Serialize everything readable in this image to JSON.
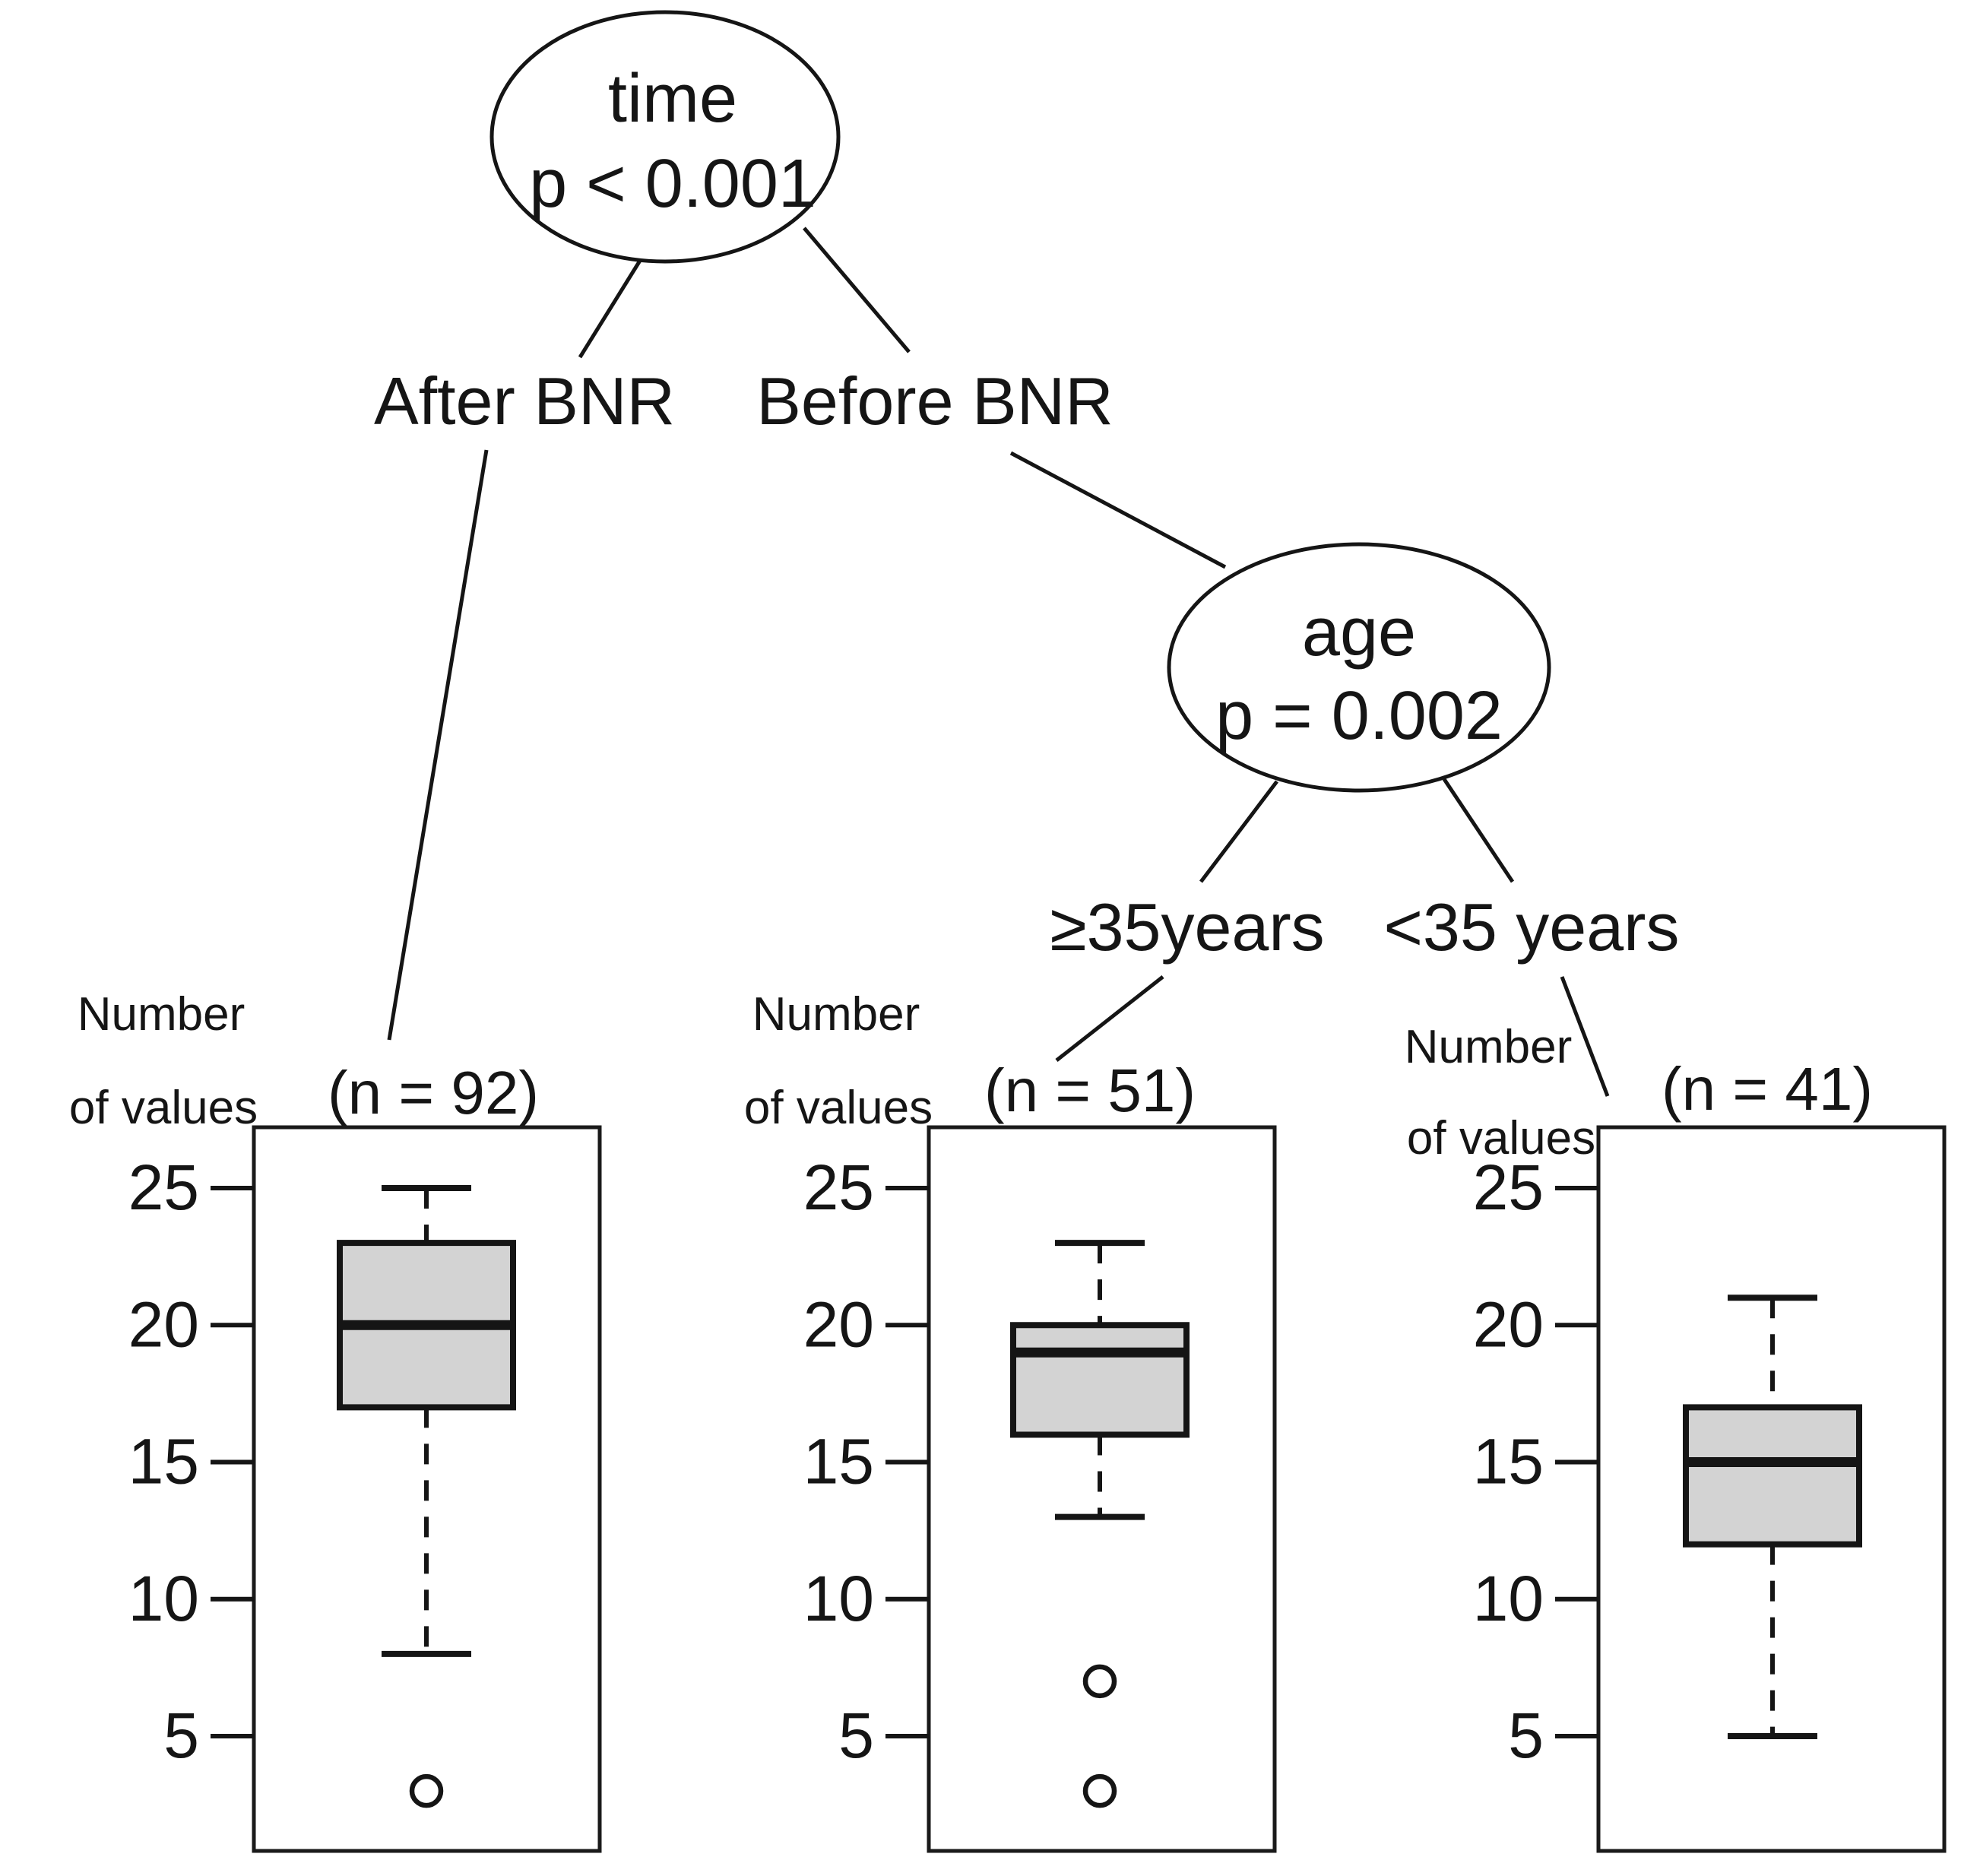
{
  "figure": {
    "background": "#ffffff",
    "ink": "#151515",
    "box_fill": "#d3d3d3"
  },
  "tree": {
    "root_node": {
      "label": "time",
      "pvalue": "p < 0.001"
    },
    "age_node": {
      "label": "age",
      "pvalue": "p = 0.002"
    },
    "branches": {
      "root_left": "After BNR",
      "root_right": "Before BNR",
      "age_left": "≥35years",
      "age_right": "<35 years"
    }
  },
  "axis": {
    "title_line1": "Number",
    "title_line2": "of values",
    "ticks": [
      25,
      20,
      15,
      10,
      5
    ]
  },
  "chart_data": {
    "type": "boxplot",
    "title": "",
    "xlabel": "",
    "ylabel": "Number of values",
    "yticks": [
      5,
      10,
      15,
      20,
      25
    ],
    "ylim": [
      1,
      27
    ],
    "grid": false,
    "legend": "none",
    "tree_structure": "time (p < 0.001): After BNR -> leaf n=92; Before BNR -> age (p = 0.002): >=35years -> leaf n=51, <35 years -> leaf n=41",
    "panels": [
      {
        "branch": "After BNR",
        "n_label": "(n = 92)",
        "n": 92,
        "whisker_high": 25,
        "q3": 23,
        "median": 20,
        "q1": 17,
        "whisker_low": 8,
        "outliers": [
          3
        ]
      },
      {
        "branch": "Before BNR, ≥35years",
        "n_label": "(n = 51)",
        "n": 51,
        "whisker_high": 23,
        "q3": 20,
        "median": 19,
        "q1": 16,
        "whisker_low": 13,
        "outliers": [
          7,
          3
        ]
      },
      {
        "branch": "Before BNR, <35 years",
        "n_label": "(n = 41)",
        "n": 41,
        "whisker_high": 21,
        "q3": 17,
        "median": 15,
        "q1": 12,
        "whisker_low": 5,
        "outliers": []
      }
    ]
  }
}
